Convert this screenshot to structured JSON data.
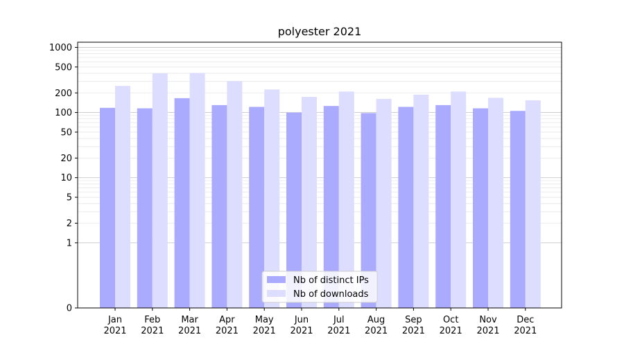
{
  "chart_data": {
    "type": "bar",
    "title": "polyester 2021",
    "xlabel": "",
    "ylabel": "",
    "yscale": "symlog",
    "ylim": [
      0,
      1200
    ],
    "grid": true,
    "legend_position": "bottom-center",
    "categories": [
      {
        "month": "Jan",
        "year": "2021"
      },
      {
        "month": "Feb",
        "year": "2021"
      },
      {
        "month": "Mar",
        "year": "2021"
      },
      {
        "month": "Apr",
        "year": "2021"
      },
      {
        "month": "May",
        "year": "2021"
      },
      {
        "month": "Jun",
        "year": "2021"
      },
      {
        "month": "Jul",
        "year": "2021"
      },
      {
        "month": "Aug",
        "year": "2021"
      },
      {
        "month": "Sep",
        "year": "2021"
      },
      {
        "month": "Oct",
        "year": "2021"
      },
      {
        "month": "Nov",
        "year": "2021"
      },
      {
        "month": "Dec",
        "year": "2021"
      }
    ],
    "y_ticks": [
      0,
      1,
      2,
      5,
      10,
      20,
      50,
      100,
      200,
      500,
      1000
    ],
    "series": [
      {
        "name": "Nb of distinct IPs",
        "color": "#aaaaff",
        "values": [
          118,
          116,
          166,
          130,
          122,
          100,
          126,
          98,
          122,
          130,
          116,
          106
        ]
      },
      {
        "name": "Nb of downloads",
        "color": "#ddddff",
        "values": [
          256,
          398,
          405,
          304,
          226,
          174,
          210,
          162,
          188,
          210,
          168,
          154
        ]
      }
    ]
  }
}
